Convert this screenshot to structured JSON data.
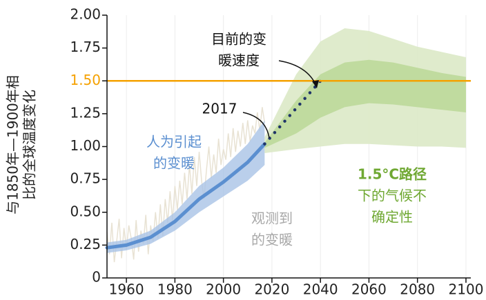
{
  "chart_data": {
    "type": "line",
    "y_label": [
      "与1850年—1900年相",
      "比的全球温度变化"
    ],
    "xlim": [
      1952,
      2102
    ],
    "xticks": [
      1960,
      1980,
      2000,
      2020,
      2040,
      2060,
      2080,
      2100
    ],
    "ylim": [
      0,
      2
    ],
    "yticks": [
      {
        "value": 0,
        "label": "0"
      },
      0.25,
      {
        "value": 0.5,
        "label": "0.50"
      },
      0.75,
      {
        "value": 1,
        "label": "1.00"
      },
      1.25,
      {
        "value": 1.5,
        "label": "1.50"
      },
      1.75,
      {
        "value": 2,
        "label": "2.00"
      }
    ],
    "grid": "x",
    "hline": {
      "value": 1.5,
      "color": "#f5a100"
    },
    "series": [
      {
        "kind": "band",
        "color": "#e8e2d3",
        "x": [
          1952,
          1953,
          1954,
          1955,
          1956,
          1957,
          1958,
          1959,
          1960,
          1961,
          1962,
          1963,
          1964,
          1965,
          1966,
          1967,
          1968,
          1969,
          1970,
          1971,
          1972,
          1973,
          1974,
          1975,
          1976,
          1977,
          1978,
          1979,
          1980,
          1981,
          1982,
          1983,
          1984,
          1985,
          1986,
          1987,
          1988,
          1989,
          1990,
          1991,
          1992,
          1993,
          1994,
          1995,
          1996,
          1997,
          1998,
          1999,
          2000,
          2001,
          2002,
          2003,
          2004,
          2005,
          2006,
          2007,
          2008,
          2009,
          2010,
          2011,
          2012,
          2013,
          2014,
          2015,
          2016,
          2017
        ],
        "values": [
          0.35,
          0.18,
          0.42,
          0.12,
          0.28,
          0.45,
          0.15,
          0.38,
          0.22,
          0.4,
          0.3,
          0.14,
          0.44,
          0.2,
          0.36,
          0.26,
          0.48,
          0.18,
          0.4,
          0.28,
          0.5,
          0.3,
          0.56,
          0.32,
          0.6,
          0.42,
          0.66,
          0.44,
          0.7,
          0.52,
          0.74,
          0.56,
          0.8,
          0.6,
          0.86,
          0.64,
          0.92,
          0.7,
          0.96,
          0.74,
          0.6,
          0.82,
          1.0,
          0.76,
          0.94,
          0.8,
          1.06,
          0.86,
          0.98,
          0.9,
          1.1,
          0.92,
          1.14,
          0.96,
          1.12,
          1.0,
          1.18,
          1.02,
          1.2,
          1.04,
          1.16,
          1.1,
          1.26,
          1.12,
          1.3,
          1.18
        ],
        "style": "noise"
      },
      {
        "kind": "band",
        "color": "#a9c3e6",
        "opacity": 0.8,
        "x": [
          1952,
          1960,
          1970,
          1980,
          1990,
          2000,
          2010,
          2017
        ],
        "values": [
          0.27,
          0.29,
          0.36,
          0.5,
          0.7,
          0.84,
          1.02,
          1.2
        ],
        "lower": [
          0.19,
          0.21,
          0.26,
          0.36,
          0.5,
          0.62,
          0.74,
          0.86
        ]
      },
      {
        "kind": "band",
        "color": "#dbe9c6",
        "opacity": 0.9,
        "x": [
          2017,
          2030,
          2040,
          2050,
          2060,
          2070,
          2080,
          2090,
          2100
        ],
        "values": [
          1.07,
          1.55,
          1.8,
          1.9,
          1.88,
          1.82,
          1.76,
          1.72,
          1.68
        ],
        "lower": [
          0.95,
          0.98,
          1.0,
          1.02,
          1.02,
          1.01,
          1.0,
          1.0,
          0.99
        ]
      },
      {
        "kind": "band",
        "color": "#bcd99a",
        "opacity": 0.9,
        "x": [
          2017,
          2030,
          2040,
          2050,
          2060,
          2070,
          2080,
          2090,
          2100
        ],
        "values": [
          1.03,
          1.35,
          1.55,
          1.64,
          1.66,
          1.64,
          1.6,
          1.56,
          1.53
        ],
        "lower": [
          0.99,
          1.1,
          1.22,
          1.3,
          1.33,
          1.32,
          1.3,
          1.28,
          1.26
        ]
      },
      {
        "kind": "line",
        "color": "#5b8fd0",
        "x": [
          1952,
          1960,
          1970,
          1980,
          1990,
          2000,
          2010,
          2017
        ],
        "values": [
          0.23,
          0.25,
          0.31,
          0.43,
          0.6,
          0.73,
          0.88,
          1.02
        ]
      },
      {
        "kind": "dotted",
        "color": "#1f3468",
        "x": [
          2017,
          2040
        ],
        "values": [
          1.02,
          1.5
        ]
      }
    ],
    "annotations": [
      {
        "lines": [
          "目前的变",
          "暖速度"
        ],
        "color": "#111111"
      },
      {
        "lines": [
          "2017"
        ],
        "color": "#111111"
      },
      {
        "lines": [
          "人为引起",
          "的变暖"
        ],
        "color": "#5b8fd0"
      },
      {
        "lines": [
          "观测到",
          "的变暖"
        ],
        "color": "#a8a8a8"
      },
      {
        "lines": [
          "1.5°C路径",
          "下的气候不",
          "确定性"
        ],
        "color": "#6fa832"
      }
    ]
  }
}
